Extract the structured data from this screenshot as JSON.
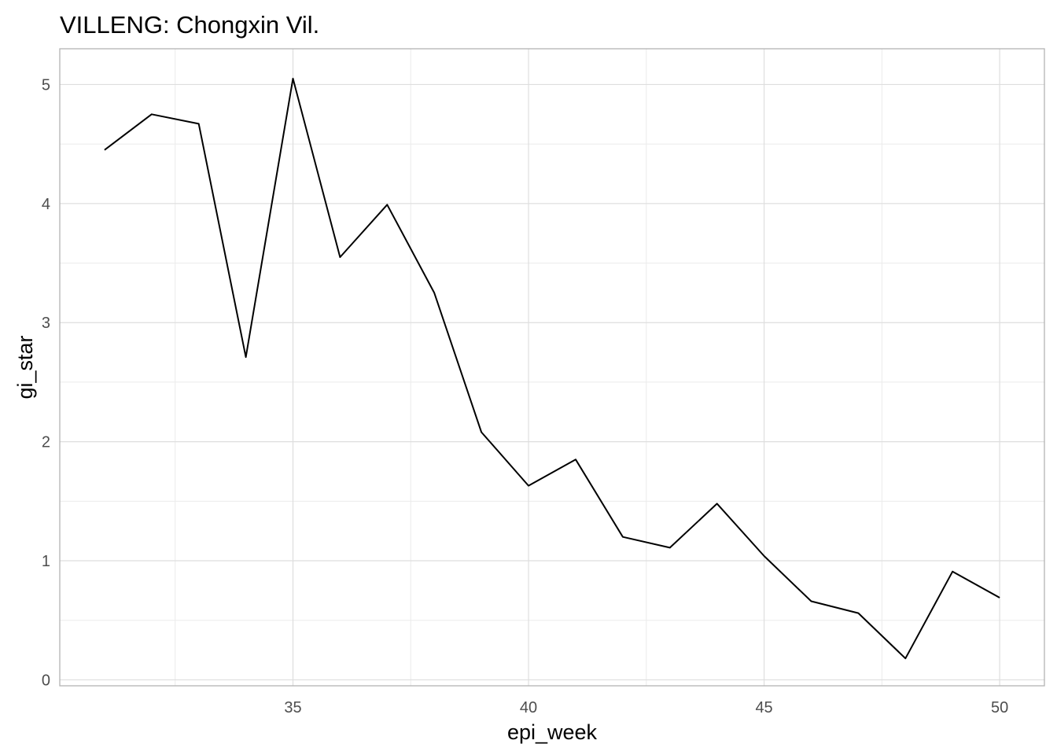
{
  "chart_data": {
    "type": "line",
    "title": "VILLENG: Chongxin Vil.",
    "xlabel": "epi_week",
    "ylabel": "gi_star",
    "xlim": [
      30.05,
      50.95
    ],
    "ylim": [
      -0.05,
      5.3
    ],
    "x_ticks": [
      35,
      40,
      45,
      50
    ],
    "y_ticks": [
      0,
      1,
      2,
      3,
      4,
      5
    ],
    "grid": true,
    "series": [
      {
        "color": "#000000",
        "x": [
          31,
          32,
          33,
          34,
          35,
          36,
          37,
          38,
          39,
          40,
          41,
          42,
          43,
          44,
          45,
          46,
          47,
          48,
          49,
          50
        ],
        "y": [
          4.45,
          4.75,
          4.67,
          2.71,
          5.05,
          3.55,
          3.99,
          3.25,
          2.08,
          1.63,
          1.85,
          1.2,
          1.11,
          1.48,
          1.04,
          0.66,
          0.56,
          0.18,
          0.91,
          0.69
        ]
      }
    ]
  }
}
